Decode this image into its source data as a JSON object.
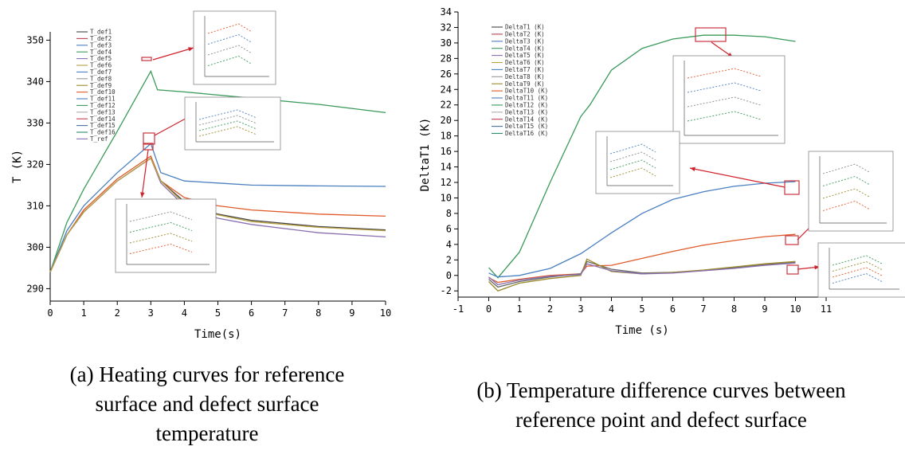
{
  "chart_data": [
    {
      "id": "a",
      "type": "line",
      "xlabel": "Time(s)",
      "ylabel": "T (K)",
      "xlim": [
        0,
        10
      ],
      "ylim": [
        287,
        352
      ],
      "xticks": [
        0,
        1,
        2,
        3,
        4,
        5,
        6,
        7,
        8,
        9,
        10
      ],
      "yticks": [
        290,
        300,
        310,
        320,
        330,
        340,
        350
      ],
      "grid": false,
      "legend_position": "top-left",
      "legend": [
        "T_def1",
        "T_def2",
        "T_def3",
        "T_def4",
        "T_def5",
        "T_def6",
        "T_def7",
        "T_def8",
        "T_def9",
        "T_def10",
        "T_def11",
        "T_def12",
        "T_def13",
        "T_def14",
        "T_def15",
        "T_def16",
        "T_ref"
      ],
      "series": [
        {
          "color": "#3a9a5a",
          "x": [
            0,
            0.5,
            1,
            2,
            3,
            3.2,
            4,
            6,
            8,
            10
          ],
          "y": [
            294,
            306,
            314,
            328,
            342.5,
            338,
            337.5,
            336,
            334.5,
            332.5
          ]
        },
        {
          "color": "#4a7fc0",
          "x": [
            0,
            0.5,
            1,
            2,
            3,
            3.3,
            4,
            5,
            6,
            8,
            10
          ],
          "y": [
            294,
            304,
            310,
            318,
            325,
            318,
            316,
            315.5,
            315,
            314.8,
            314.7
          ]
        },
        {
          "color": "#e05a2a",
          "x": [
            0,
            0.5,
            1,
            2,
            3,
            3.3,
            4,
            5,
            6,
            8,
            10
          ],
          "y": [
            294,
            303,
            309,
            316.5,
            322,
            316,
            312,
            310,
            309,
            308,
            307.5
          ]
        },
        {
          "color": "#444444",
          "x": [
            0,
            0.5,
            1,
            2,
            3,
            3.3,
            4,
            5,
            6,
            8,
            10
          ],
          "y": [
            294,
            303,
            308.5,
            316,
            321.5,
            316,
            311,
            308,
            306.5,
            305,
            304.2
          ]
        },
        {
          "color": "#8a6fb0",
          "x": [
            0,
            0.5,
            1,
            2,
            3,
            3.3,
            4,
            5,
            6,
            8,
            10
          ],
          "y": [
            294,
            303,
            308.5,
            316,
            321.5,
            315.5,
            310,
            307,
            305.5,
            303.5,
            302.5
          ]
        },
        {
          "color": "#b8a040",
          "x": [
            0,
            0.5,
            1,
            2,
            3,
            3.3,
            4,
            5,
            6,
            8,
            10
          ],
          "y": [
            294,
            303,
            308.5,
            316,
            321.5,
            316,
            310.5,
            307.8,
            306.2,
            304.8,
            304
          ]
        }
      ]
    },
    {
      "id": "b",
      "type": "line",
      "xlabel": "Time (s)",
      "ylabel": "DeltaT1 (K)",
      "xlim": [
        -1,
        11
      ],
      "ylim": [
        -2.8,
        34
      ],
      "xticks": [
        -1,
        0,
        1,
        2,
        3,
        4,
        5,
        6,
        7,
        8,
        9,
        10,
        11
      ],
      "yticks": [
        -2,
        0,
        2,
        4,
        6,
        8,
        10,
        12,
        14,
        16,
        18,
        20,
        22,
        24,
        26,
        28,
        30,
        32,
        34
      ],
      "grid": false,
      "legend_position": "top-left",
      "legend": [
        "DeltaT1 (K)",
        "DeltaT2 (K)",
        "DeltaT3 (K)",
        "DeltaT4 (K)",
        "DeltaT5 (K)",
        "DeltaT6 (K)",
        "DeltaT7 (K)",
        "DeltaT8 (K)",
        "DeltaT9 (K)",
        "DeltaT10 (K)",
        "DeltaT11 (K)",
        "DeltaT12 (K)",
        "DeltaT13 (K)",
        "DeltaT14 (K)",
        "DeltaT15 (K)",
        "DeltaT16 (K)"
      ],
      "series": [
        {
          "color": "#3a9a5a",
          "x": [
            0,
            0.3,
            1,
            2,
            3,
            3.1,
            3.3,
            4,
            5,
            6,
            7,
            8,
            9,
            10
          ],
          "y": [
            1,
            -0.3,
            3,
            12,
            20.5,
            21,
            22,
            26.5,
            29.3,
            30.5,
            31,
            31,
            30.8,
            30.2
          ]
        },
        {
          "color": "#4a7fc0",
          "x": [
            0,
            0.3,
            1,
            2,
            3,
            4,
            5,
            6,
            7,
            8,
            9,
            10
          ],
          "y": [
            0.3,
            -0.2,
            0,
            0.9,
            2.8,
            5.5,
            8,
            9.8,
            10.8,
            11.5,
            11.9,
            12.1
          ]
        },
        {
          "color": "#e05a2a",
          "x": [
            0,
            0.3,
            1,
            2,
            3,
            3.2,
            4,
            5,
            6,
            7,
            8,
            9,
            10
          ],
          "y": [
            -0.3,
            -0.9,
            -0.5,
            0,
            0.2,
            1.2,
            1.3,
            2.2,
            3.1,
            3.9,
            4.5,
            5,
            5.3
          ]
        },
        {
          "color": "#666666",
          "x": [
            0,
            0.3,
            1,
            2,
            3,
            3.2,
            4,
            5,
            6,
            7,
            8,
            9,
            10
          ],
          "y": [
            -0.5,
            -1.5,
            -0.8,
            -0.2,
            0.2,
            1.8,
            0.8,
            0.3,
            0.4,
            0.6,
            1,
            1.4,
            1.7
          ]
        },
        {
          "color": "#9a8a2a",
          "x": [
            0,
            0.3,
            1,
            2,
            3,
            3.2,
            4,
            5,
            6,
            7,
            8,
            9,
            10
          ],
          "y": [
            -0.8,
            -2,
            -1,
            -0.4,
            0,
            2.1,
            0.5,
            0.2,
            0.4,
            0.7,
            1.1,
            1.5,
            1.8
          ]
        },
        {
          "color": "#8a6fb0",
          "x": [
            0,
            0.3,
            1,
            2,
            3,
            3.2,
            4,
            5,
            6,
            7,
            8,
            9,
            10
          ],
          "y": [
            -0.2,
            -1.2,
            -0.6,
            -0.1,
            0.1,
            1.5,
            0.6,
            0.2,
            0.3,
            0.6,
            0.9,
            1.3,
            1.6
          ]
        }
      ]
    }
  ],
  "captions": {
    "a": [
      "(a) Heating curves for reference",
      "surface and defect surface",
      "temperature"
    ],
    "b": [
      "(b) Temperature difference curves between",
      "reference point and defect surface"
    ]
  }
}
